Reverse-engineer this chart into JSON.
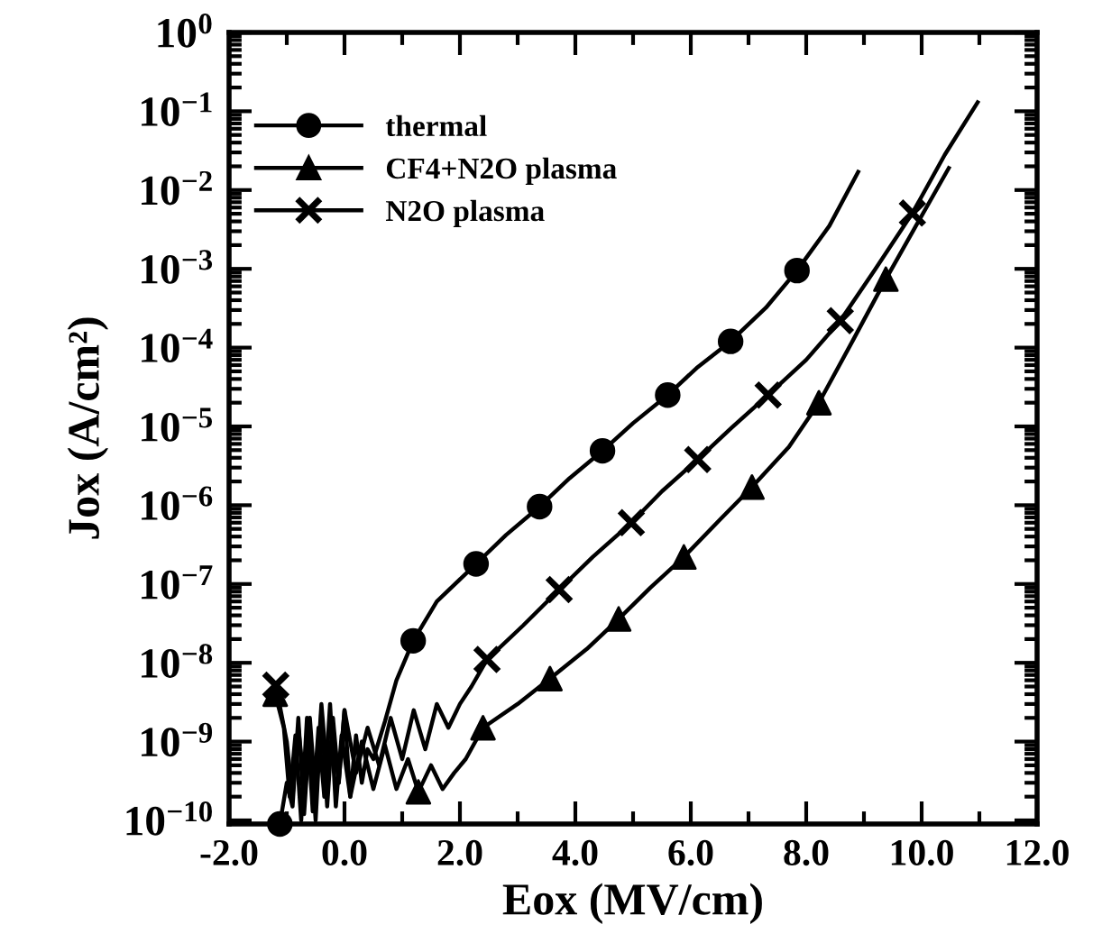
{
  "chart_data": {
    "type": "line",
    "xlabel": "Eox (MV/cm)",
    "ylabel": "Jox (A/cm²)",
    "log": "y",
    "legend": "top left",
    "grid": false,
    "xlim": [
      -2,
      12
    ],
    "xticks": [
      {
        "value": -2,
        "label": "-2.0"
      },
      {
        "value": 0,
        "label": "0.0"
      },
      {
        "value": 2,
        "label": "2.0"
      },
      {
        "value": 4,
        "label": "4.0"
      },
      {
        "value": 6,
        "label": "6.0"
      },
      {
        "value": 8,
        "label": "8.0"
      },
      {
        "value": 10,
        "label": "10.0"
      },
      {
        "value": 12,
        "label": "12.0"
      }
    ],
    "ylim": [
      9e-11,
      1
    ],
    "yticks": [
      {
        "value": 1e-10,
        "label": "10$^{−10}$"
      },
      {
        "value": 1e-09,
        "label": "10$^{−9}$"
      },
      {
        "value": 1e-08,
        "label": "10$^{−8}$"
      },
      {
        "value": 1e-07,
        "label": "10$^{−7}$"
      },
      {
        "value": 1e-06,
        "label": "10$^{−6}$"
      },
      {
        "value": 1e-05,
        "label": "10$^{−5}$"
      },
      {
        "value": 0.0001,
        "label": "10$^{−4}$"
      },
      {
        "value": 0.001,
        "label": "10$^{−3}$"
      },
      {
        "value": 0.01,
        "label": "10$^{−2}$"
      },
      {
        "value": 0.1,
        "label": "10$^{−1}$"
      },
      {
        "value": 1,
        "label": "10$^{0}$"
      }
    ],
    "series": [
      {
        "marker": "none",
        "color": "#000000",
        "x": [
          -1.12,
          -1.0,
          -0.9,
          -0.8,
          -0.7,
          -0.6,
          -0.5,
          -0.4,
          -0.3,
          -0.2,
          -0.1,
          0.0,
          0.1,
          0.2,
          0.3,
          0.4,
          0.5,
          0.7,
          0.9,
          1.19,
          1.6,
          2.28,
          2.8,
          3.38,
          3.9,
          4.47,
          5.0,
          5.6,
          6.1,
          6.69,
          7.3,
          7.84,
          8.4,
          8.9
        ],
        "values": [
          9e-11,
          3e-10,
          1.5e-10,
          2e-09,
          1.2e-10,
          1.5e-09,
          1e-10,
          2.5e-09,
          1.5e-10,
          2e-09,
          3e-10,
          2.5e-09,
          2e-10,
          1.2e-09,
          3e-10,
          8e-10,
          6e-10,
          1.8e-09,
          6e-09,
          1.9e-08,
          6e-08,
          1.8e-07,
          4.2e-07,
          9.6e-07,
          2.2e-06,
          4.9e-06,
          1.1e-05,
          2.5e-05,
          5.5e-05,
          0.00012,
          0.00032,
          0.00095,
          0.0035,
          0.017
        ]
      },
      {
        "marker": "none",
        "color": "#000000",
        "x": [
          -1.2,
          -1.05,
          -0.95,
          -0.85,
          -0.75,
          -0.65,
          -0.55,
          -0.45,
          -0.35,
          -0.25,
          -0.15,
          -0.05,
          0.1,
          0.3,
          0.5,
          0.7,
          0.9,
          1.1,
          1.28,
          1.5,
          1.7,
          1.9,
          2.1,
          2.4,
          3.0,
          3.56,
          4.2,
          4.75,
          5.3,
          5.88,
          6.5,
          7.06,
          7.7,
          8.22,
          8.8,
          9.38,
          9.9,
          10.47
        ],
        "values": [
          4e-09,
          1.5e-09,
          2e-10,
          1.2e-09,
          1e-10,
          2e-09,
          1.3e-10,
          1.5e-09,
          2e-10,
          3e-09,
          1.5e-10,
          1.2e-09,
          2e-10,
          1e-09,
          2.5e-10,
          9e-10,
          2.5e-10,
          6e-10,
          2.3e-10,
          5e-10,
          2.5e-10,
          4e-10,
          6e-10,
          1.5e-09,
          3e-09,
          6.3e-09,
          1.5e-08,
          3.6e-08,
          9e-08,
          2.2e-07,
          6.5e-07,
          1.7e-06,
          5.5e-06,
          2e-05,
          0.00012,
          0.00074,
          0.0035,
          0.019
        ]
      },
      {
        "marker": "none",
        "color": "#000000",
        "x": [
          -1.19,
          -1.0,
          -0.9,
          -0.8,
          -0.7,
          -0.6,
          -0.5,
          -0.4,
          -0.3,
          -0.2,
          -0.1,
          0.0,
          0.2,
          0.4,
          0.6,
          0.8,
          1.0,
          1.2,
          1.4,
          1.6,
          1.8,
          2.0,
          2.2,
          2.47,
          3.1,
          3.72,
          4.3,
          4.97,
          5.5,
          6.12,
          6.7,
          7.34,
          8.0,
          8.59,
          9.2,
          9.84,
          10.4,
          10.97
        ],
        "values": [
          5.2e-09,
          1e-09,
          2e-10,
          1.5e-09,
          3e-10,
          2e-09,
          2e-10,
          3e-09,
          4e-10,
          1.5e-09,
          3e-10,
          2.5e-09,
          4e-10,
          1.5e-09,
          5e-10,
          2e-09,
          6e-10,
          2.5e-09,
          8e-10,
          3e-09,
          1.5e-09,
          3e-09,
          5e-09,
          1.1e-08,
          3e-08,
          8.5e-08,
          2.2e-07,
          6e-07,
          1.5e-06,
          3.8e-06,
          9.5e-06,
          2.5e-05,
          7e-05,
          0.00022,
          0.001,
          0.0051,
          0.028,
          0.13
        ]
      },
      {
        "type": "scatter",
        "name": "thermal",
        "marker": "circle",
        "color": "#000000",
        "x": [
          -1.12,
          1.19,
          2.28,
          3.38,
          4.47,
          5.6,
          6.69,
          7.84
        ],
        "values": [
          9e-11,
          1.9e-08,
          1.8e-07,
          9.6e-07,
          4.9e-06,
          2.5e-05,
          0.00012,
          0.00095
        ]
      },
      {
        "type": "scatter",
        "name": "CF4+N2O plasma",
        "marker": "triangle",
        "color": "#000000",
        "x": [
          -1.2,
          1.28,
          2.4,
          3.56,
          4.75,
          5.88,
          7.06,
          8.22,
          9.38
        ],
        "values": [
          4e-09,
          2.3e-10,
          1.5e-09,
          6.3e-09,
          3.6e-08,
          2.2e-07,
          1.7e-06,
          2e-05,
          0.00074
        ]
      },
      {
        "type": "scatter",
        "name": "N2O plasma",
        "marker": "cross",
        "color": "#000000",
        "x": [
          -1.19,
          2.47,
          3.72,
          4.97,
          6.12,
          7.34,
          8.59,
          9.84
        ],
        "values": [
          5.2e-09,
          1.1e-08,
          8.5e-08,
          6e-07,
          3.8e-06,
          2.5e-05,
          0.00022,
          0.0051
        ]
      }
    ]
  }
}
